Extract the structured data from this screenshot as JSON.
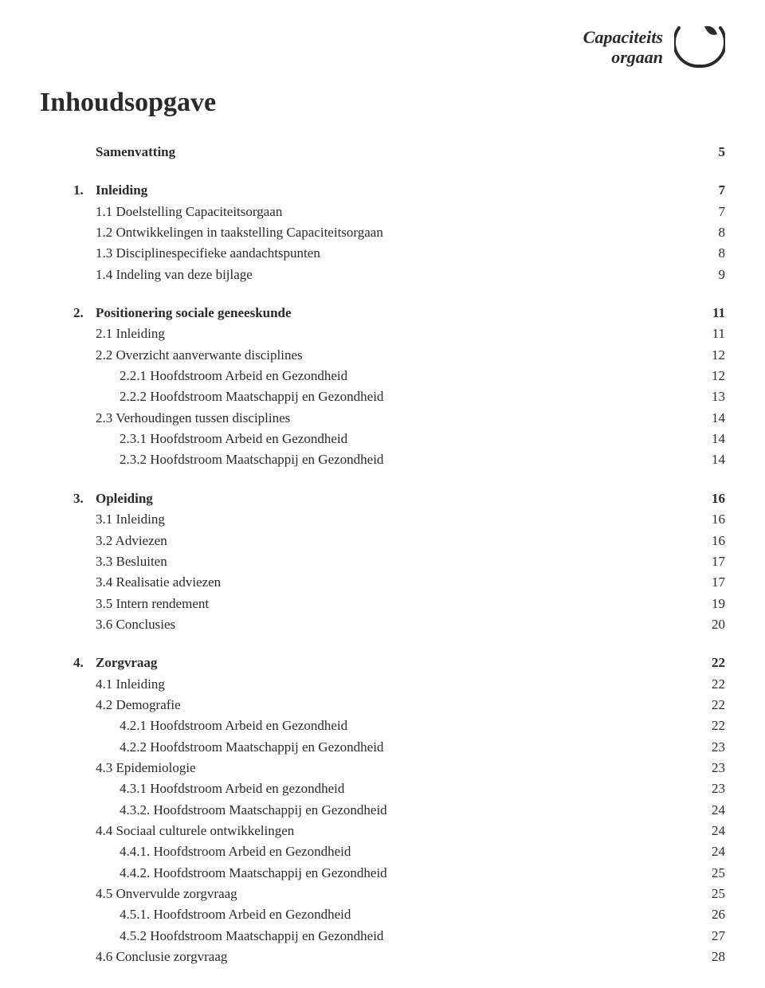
{
  "logo": {
    "line1": "Capaciteits",
    "line2": "orgaan"
  },
  "title": "Inhoudsopgave",
  "colors": {
    "text": "#2a2a2a",
    "bg": "#ffffff"
  },
  "samenvatting": {
    "label": "Samenvatting",
    "page": "5"
  },
  "sections": [
    {
      "num": "1.",
      "label": "Inleiding",
      "page": "7",
      "items": [
        {
          "label": "1.1 Doelstelling Capaciteitsorgaan",
          "page": "7",
          "indent": 1
        },
        {
          "label": "1.2 Ontwikkelingen in taakstelling Capaciteitsorgaan",
          "page": "8",
          "indent": 1
        },
        {
          "label": "1.3 Disciplinespecifieke aandachtspunten",
          "page": "8",
          "indent": 1
        },
        {
          "label": "1.4 Indeling van deze bijlage",
          "page": "9",
          "indent": 1
        }
      ]
    },
    {
      "num": "2.",
      "label": "Positionering sociale geneeskunde",
      "page": "11",
      "items": [
        {
          "label": "2.1 Inleiding",
          "page": "11",
          "indent": 1
        },
        {
          "label": "2.2 Overzicht aanverwante disciplines",
          "page": "12",
          "indent": 1
        },
        {
          "label": "2.2.1 Hoofdstroom Arbeid en Gezondheid",
          "page": "12",
          "indent": 2
        },
        {
          "label": "2.2.2 Hoofdstroom Maatschappij en Gezondheid",
          "page": "13",
          "indent": 2
        },
        {
          "label": "2.3 Verhoudingen tussen disciplines",
          "page": "14",
          "indent": 1
        },
        {
          "label": "2.3.1 Hoofdstroom Arbeid en Gezondheid",
          "page": "14",
          "indent": 2
        },
        {
          "label": "2.3.2 Hoofdstroom Maatschappij en Gezondheid",
          "page": "14",
          "indent": 2
        }
      ]
    },
    {
      "num": "3.",
      "label": "Opleiding",
      "page": "16",
      "items": [
        {
          "label": "3.1 Inleiding",
          "page": "16",
          "indent": 1
        },
        {
          "label": "3.2 Adviezen",
          "page": "16",
          "indent": 1
        },
        {
          "label": "3.3 Besluiten",
          "page": "17",
          "indent": 1
        },
        {
          "label": "3.4 Realisatie adviezen",
          "page": "17",
          "indent": 1
        },
        {
          "label": "3.5 Intern rendement",
          "page": "19",
          "indent": 1
        },
        {
          "label": "3.6 Conclusies",
          "page": "20",
          "indent": 1
        }
      ]
    },
    {
      "num": "4.",
      "label": "Zorgvraag",
      "page": "22",
      "items": [
        {
          "label": "4.1 Inleiding",
          "page": "22",
          "indent": 1
        },
        {
          "label": "4.2 Demografie",
          "page": "22",
          "indent": 1
        },
        {
          "label": "4.2.1 Hoofdstroom Arbeid en Gezondheid",
          "page": "22",
          "indent": 2
        },
        {
          "label": "4.2.2 Hoofdstroom Maatschappij en Gezondheid",
          "page": "23",
          "indent": 2
        },
        {
          "label": "4.3 Epidemiologie",
          "page": "23",
          "indent": 1
        },
        {
          "label": "4.3.1 Hoofdstroom Arbeid en gezondheid",
          "page": "23",
          "indent": 2
        },
        {
          "label": "4.3.2. Hoofdstroom Maatschappij en Gezondheid",
          "page": "24",
          "indent": 2
        },
        {
          "label": "4.4 Sociaal culturele ontwikkelingen",
          "page": "24",
          "indent": 1
        },
        {
          "label": "4.4.1. Hoofdstroom Arbeid en Gezondheid",
          "page": "24",
          "indent": 2
        },
        {
          "label": "4.4.2. Hoofdstroom Maatschappij en Gezondheid",
          "page": "25",
          "indent": 2
        },
        {
          "label": "4.5 Onvervulde zorgvraag",
          "page": "25",
          "indent": 1
        },
        {
          "label": "4.5.1. Hoofdstroom Arbeid en Gezondheid",
          "page": "26",
          "indent": 2
        },
        {
          "label": "4.5.2 Hoofdstroom Maatschappij en Gezondheid",
          "page": "27",
          "indent": 2
        },
        {
          "label": "4.6 Conclusie zorgvraag",
          "page": "28",
          "indent": 1
        }
      ]
    }
  ]
}
